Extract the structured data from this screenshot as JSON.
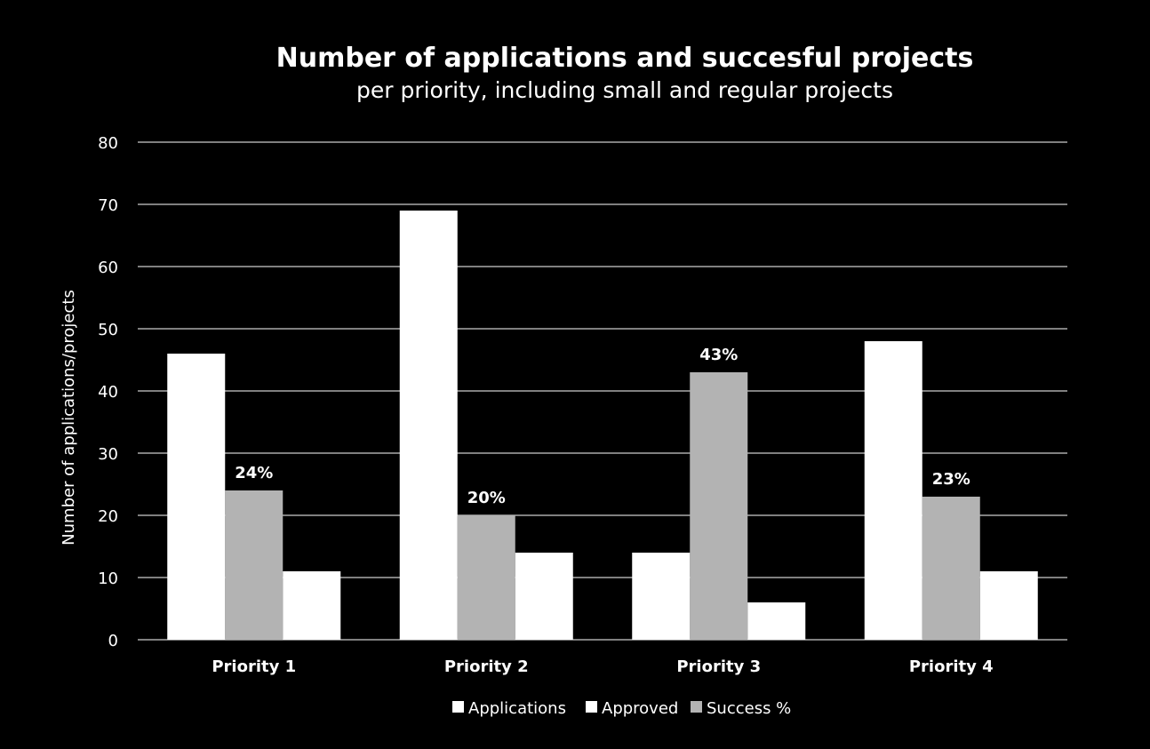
{
  "chart_data": {
    "type": "bar",
    "title": "Number of applications and succesful projects",
    "subtitle": "per priority, including small and regular projects",
    "ylabel": "Number of applications/projects",
    "xlabel": "",
    "ylim": [
      0,
      80
    ],
    "yticks": [
      "0",
      "10",
      "20",
      "30",
      "40",
      "50",
      "60",
      "70",
      "80"
    ],
    "categories": [
      "Priority 1",
      "Priority 2",
      "Priority 3",
      "Priority 4"
    ],
    "series": [
      {
        "name": "Applications",
        "values": [
          46,
          69,
          14,
          48
        ],
        "color": "#ffffff"
      },
      {
        "name": "Success %",
        "values": [
          24,
          20,
          43,
          23
        ],
        "color": "#b3b3b3",
        "labels": [
          "24%",
          "20%",
          "43%",
          "23%"
        ]
      },
      {
        "name": "Approved",
        "values": [
          11,
          14,
          6,
          11
        ],
        "color": "#ffffff"
      }
    ],
    "legend": {
      "placement": "bottom",
      "items": [
        {
          "name": "Applications",
          "color": "#ffffff"
        },
        {
          "name": "Approved",
          "color": "#ffffff"
        },
        {
          "name": "Success %",
          "color": "#b3b3b3"
        }
      ]
    },
    "grid": true
  }
}
